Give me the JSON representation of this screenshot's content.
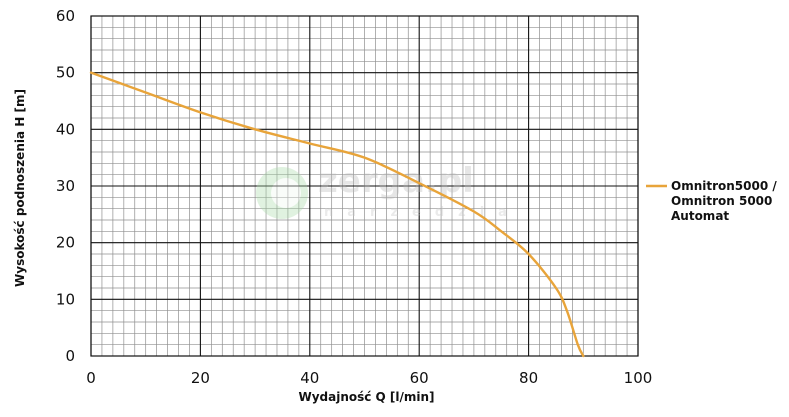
{
  "watermark": {
    "brand": "zerga.pl",
    "tagline": "narzedzia"
  },
  "chart_data": {
    "type": "line",
    "title": "",
    "xlabel": "Wydajność Q [l/min]",
    "ylabel": "Wysokość podnoszenia H [m]",
    "xlim": [
      0,
      100
    ],
    "ylim": [
      0,
      60
    ],
    "x_ticks": [
      "0",
      "20",
      "40",
      "60",
      "80",
      "100"
    ],
    "y_ticks": [
      "0",
      "10",
      "20",
      "30",
      "40",
      "50",
      "60"
    ],
    "x_step_major": 20,
    "x_step_minor": 2,
    "y_step_major": 10,
    "y_step_minor": 2,
    "grid": true,
    "legend_position": "right",
    "series": [
      {
        "name_lines": [
          "Omnitron5000 /",
          "Omnitron 5000",
          "Automat"
        ],
        "color": "#e8a43a",
        "points": [
          [
            0,
            50
          ],
          [
            10,
            46.5
          ],
          [
            20,
            43
          ],
          [
            30,
            40
          ],
          [
            40,
            37.5
          ],
          [
            50,
            35
          ],
          [
            60,
            30.5
          ],
          [
            70,
            25.5
          ],
          [
            75,
            22
          ],
          [
            80,
            18
          ],
          [
            85,
            12
          ],
          [
            87,
            8
          ],
          [
            89,
            2
          ],
          [
            90,
            0
          ]
        ]
      }
    ]
  }
}
